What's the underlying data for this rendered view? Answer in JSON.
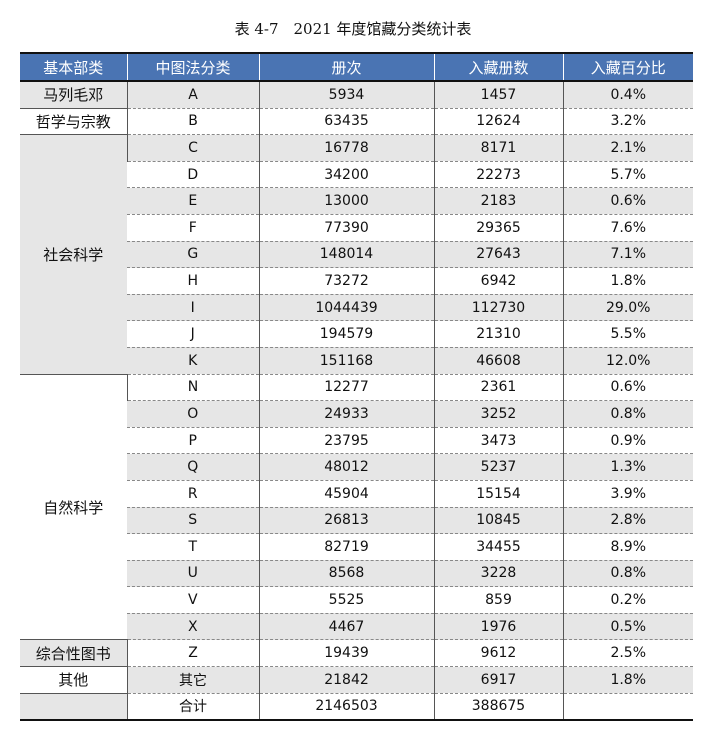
{
  "caption": "表 4-7　2021 年度馆藏分类统计表",
  "headers": [
    "基本部类",
    "中图法分类",
    "册次",
    "入藏册数",
    "入藏百分比"
  ],
  "groups": [
    {
      "name": "马列毛邓",
      "rows": [
        [
          "A",
          "5934",
          "1457",
          "0.4%"
        ]
      ]
    },
    {
      "name": "哲学与宗教",
      "rows": [
        [
          "B",
          "63435",
          "12624",
          "3.2%"
        ]
      ]
    },
    {
      "name": "社会科学",
      "rows": [
        [
          "C",
          "16778",
          "8171",
          "2.1%"
        ],
        [
          "D",
          "34200",
          "22273",
          "5.7%"
        ],
        [
          "E",
          "13000",
          "2183",
          "0.6%"
        ],
        [
          "F",
          "77390",
          "29365",
          "7.6%"
        ],
        [
          "G",
          "148014",
          "27643",
          "7.1%"
        ],
        [
          "H",
          "73272",
          "6942",
          "1.8%"
        ],
        [
          "I",
          "1044439",
          "112730",
          "29.0%"
        ],
        [
          "J",
          "194579",
          "21310",
          "5.5%"
        ],
        [
          "K",
          "151168",
          "46608",
          "12.0%"
        ]
      ]
    },
    {
      "name": "自然科学",
      "rows": [
        [
          "N",
          "12277",
          "2361",
          "0.6%"
        ],
        [
          "O",
          "24933",
          "3252",
          "0.8%"
        ],
        [
          "P",
          "23795",
          "3473",
          "0.9%"
        ],
        [
          "Q",
          "48012",
          "5237",
          "1.3%"
        ],
        [
          "R",
          "45904",
          "15154",
          "3.9%"
        ],
        [
          "S",
          "26813",
          "10845",
          "2.8%"
        ],
        [
          "T",
          "82719",
          "34455",
          "8.9%"
        ],
        [
          "U",
          "8568",
          "3228",
          "0.8%"
        ],
        [
          "V",
          "5525",
          "859",
          "0.2%"
        ],
        [
          "X",
          "4467",
          "1976",
          "0.5%"
        ]
      ]
    },
    {
      "name": "综合性图书",
      "rows": [
        [
          "Z",
          "19439",
          "9612",
          "2.5%"
        ]
      ]
    },
    {
      "name": "其他",
      "rows": [
        [
          "其它",
          "21842",
          "6917",
          "1.8%"
        ]
      ]
    },
    {
      "name": "",
      "rows": [
        [
          "合计",
          "2146503",
          "388675",
          ""
        ]
      ]
    }
  ]
}
